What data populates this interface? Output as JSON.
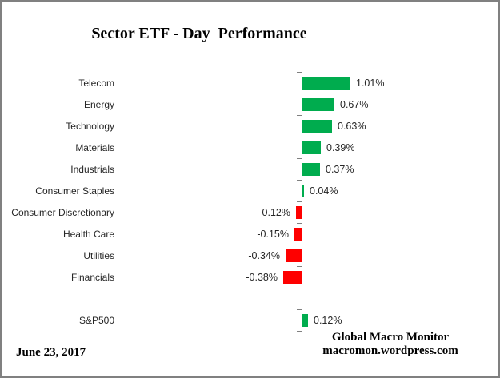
{
  "window": {
    "border_color": "#808080",
    "background_color": "#FFFFFF"
  },
  "chart_data": {
    "type": "bar",
    "orientation": "horizontal",
    "title": "Sector ETF - Day  Performance",
    "categories": [
      "Telecom",
      "Energy",
      "Technology",
      "Materials",
      "Industrials",
      "Consumer Staples",
      "Consumer Discretionary",
      "Health Care",
      "Utilities",
      "Financials",
      "S&P500"
    ],
    "values": [
      1.01,
      0.67,
      0.63,
      0.39,
      0.37,
      0.04,
      -0.12,
      -0.15,
      -0.34,
      -0.38,
      0.12
    ],
    "value_labels": [
      "1.01%",
      "0.67%",
      "0.63%",
      "0.39%",
      "0.37%",
      "0.04%",
      "-0.12%",
      "-0.15%",
      "-0.34%",
      "-0.38%",
      "0.12%"
    ],
    "spacer_after_index": 9,
    "positive_color": "#00AC4E",
    "negative_color": "#FE0000",
    "axis_color": "#808080",
    "label_color": "#262626",
    "xlim": [
      -4,
      4
    ],
    "grid": false,
    "legend": false,
    "data_labels": true,
    "xlabel": "",
    "ylabel": ""
  },
  "footer": {
    "date": "June 23, 2017",
    "credit_line1": "Global Macro Monitor",
    "credit_line2": "macromon.wordpress.com"
  }
}
